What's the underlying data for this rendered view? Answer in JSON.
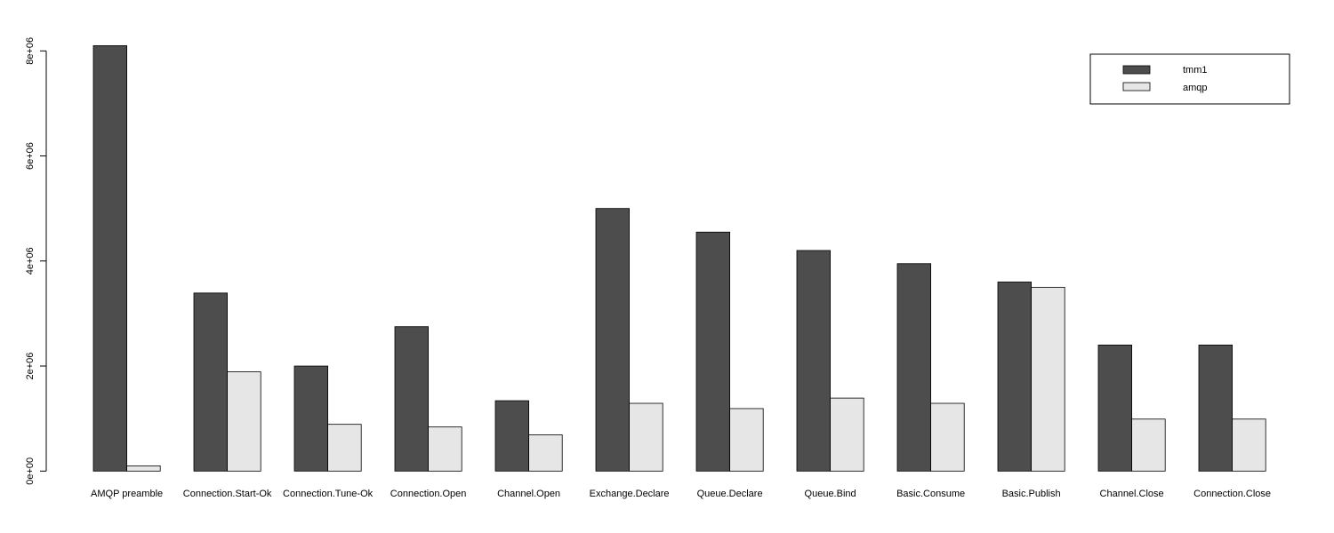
{
  "chart_data": {
    "type": "bar",
    "grouped": true,
    "categories": [
      "AMQP preamble",
      "Connection.Start-Ok",
      "Connection.Tune-Ok",
      "Connection.Open",
      "Channel.Open",
      "Exchange.Declare",
      "Queue.Declare",
      "Queue.Bind",
      "Basic.Consume",
      "Basic.Publish",
      "Channel.Close",
      "Connection.Close"
    ],
    "series": [
      {
        "name": "tmm1",
        "color": "#4d4d4d",
        "values": [
          8100000,
          3390000,
          2000000,
          2750000,
          1340000,
          5000000,
          4550000,
          4200000,
          3950000,
          3600000,
          2400000,
          2400000
        ]
      },
      {
        "name": "amqp",
        "color": "#e6e6e6",
        "values": [
          100000,
          1890000,
          890000,
          840000,
          690000,
          1290000,
          1190000,
          1390000,
          1290000,
          3500000,
          990000,
          990000
        ]
      }
    ],
    "yticks": [
      0,
      2000000,
      4000000,
      6000000,
      8000000
    ],
    "ytick_labels": [
      "0e+00",
      "2e+06",
      "4e+06",
      "6e+06",
      "8e+06"
    ],
    "ylim": [
      0,
      8000000
    ],
    "title": "",
    "xlabel": "",
    "ylabel": "",
    "grid": false,
    "legend_position": "top-right"
  }
}
